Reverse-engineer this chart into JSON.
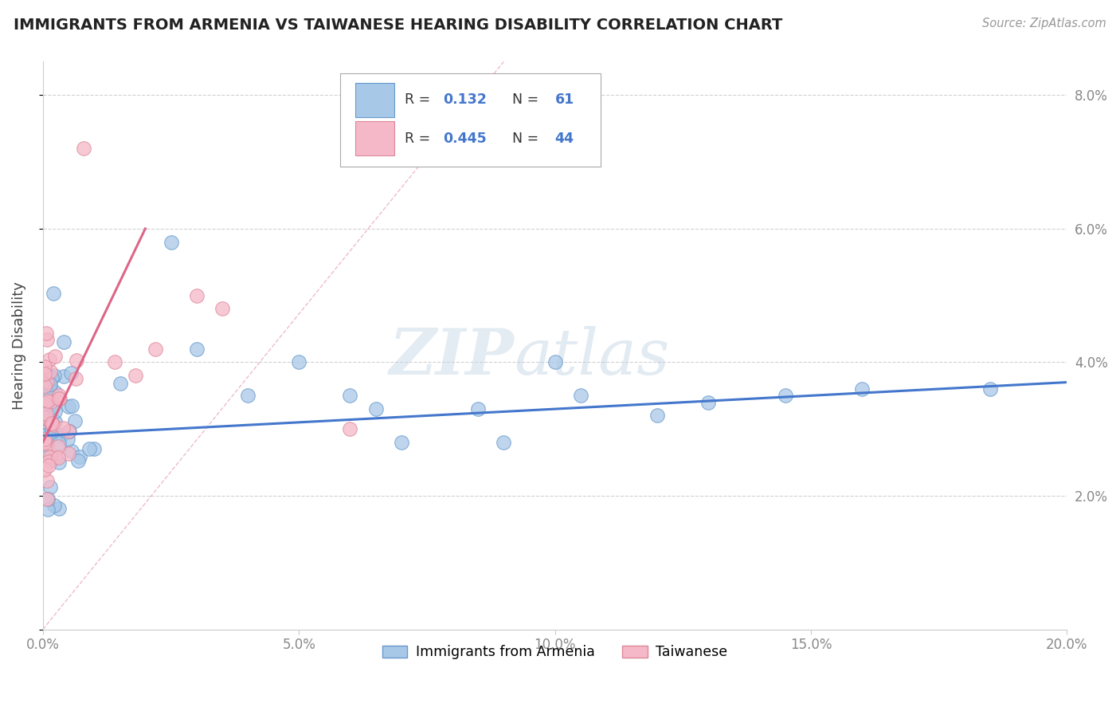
{
  "title": "IMMIGRANTS FROM ARMENIA VS TAIWANESE HEARING DISABILITY CORRELATION CHART",
  "source": "Source: ZipAtlas.com",
  "ylabel": "Hearing Disability",
  "xlim": [
    0.0,
    0.2
  ],
  "ylim": [
    0.0,
    0.085
  ],
  "xticks": [
    0.0,
    0.05,
    0.1,
    0.15,
    0.2
  ],
  "xtick_labels": [
    "0.0%",
    "5.0%",
    "10.0%",
    "15.0%",
    "20.0%"
  ],
  "yticks": [
    0.0,
    0.02,
    0.04,
    0.06,
    0.08
  ],
  "ytick_labels": [
    "",
    "2.0%",
    "4.0%",
    "6.0%",
    "8.0%"
  ],
  "watermark": "ZIPatlas",
  "series1_color": "#a8c8e8",
  "series1_edge": "#6699cc",
  "series2_color": "#f5b8c8",
  "series2_edge": "#dd8899",
  "line1_color": "#4477cc",
  "line2_color": "#dd6688",
  "grid_color": "#cccccc",
  "title_color": "#222222",
  "tick_color": "#888888",
  "source_color": "#999999"
}
